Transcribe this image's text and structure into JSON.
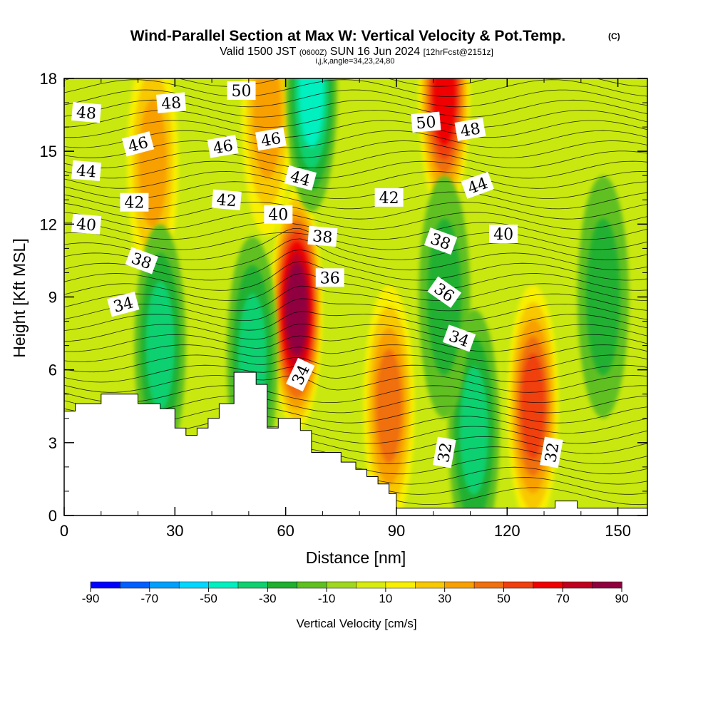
{
  "title": {
    "main": "Wind-Parallel Section at Max W: Vertical Velocity & Pot.Temp.",
    "copyright": "(C)",
    "valid_prefix": "Valid 1500 JST",
    "valid_utc": "(0600Z)",
    "valid_date": "SUN 16 Jun 2024",
    "forecast": "[12hrFcst@2151z]",
    "indices": "i,j,k,angle=34,23,24,80"
  },
  "chart_data": {
    "type": "heatmap",
    "xlabel": "Distance [nm]",
    "ylabel": "Height [Kft MSL]",
    "xlim": [
      0,
      158
    ],
    "ylim": [
      0,
      18
    ],
    "x_ticks": [
      0,
      30,
      60,
      90,
      120,
      150
    ],
    "y_ticks": [
      0,
      3,
      6,
      9,
      12,
      15,
      18
    ],
    "fill_variable": "Vertical Velocity [cm/s]",
    "colorbar": {
      "label": "Vertical Velocity [cm/s]",
      "tick_labels": [
        -90,
        -70,
        -50,
        -30,
        -10,
        10,
        30,
        50,
        70,
        90
      ],
      "levels": [
        -90,
        -80,
        -70,
        -60,
        -50,
        -40,
        -30,
        -20,
        -10,
        0,
        10,
        20,
        30,
        40,
        50,
        60,
        70,
        80,
        90
      ],
      "colors": [
        "#0000ff",
        "#0060ff",
        "#00a0ff",
        "#00d8ff",
        "#00f0c0",
        "#10d070",
        "#20b030",
        "#60c020",
        "#a0d820",
        "#d8ec10",
        "#f8f000",
        "#f8c800",
        "#f8a000",
        "#f07010",
        "#f04010",
        "#f00000",
        "#c00020",
        "#900040",
        "#600060"
      ]
    },
    "terrain": [
      [
        0,
        4.3
      ],
      [
        3,
        4.3
      ],
      [
        3,
        4.6
      ],
      [
        10,
        4.6
      ],
      [
        10,
        5.0
      ],
      [
        20,
        5.0
      ],
      [
        20,
        4.6
      ],
      [
        26,
        4.6
      ],
      [
        26,
        4.4
      ],
      [
        30,
        4.4
      ],
      [
        30,
        3.6
      ],
      [
        33,
        3.6
      ],
      [
        33,
        3.3
      ],
      [
        36,
        3.3
      ],
      [
        36,
        3.6
      ],
      [
        39,
        3.6
      ],
      [
        39,
        4.0
      ],
      [
        42,
        4.0
      ],
      [
        42,
        4.6
      ],
      [
        46,
        4.6
      ],
      [
        46,
        5.9
      ],
      [
        52,
        5.9
      ],
      [
        52,
        5.4
      ],
      [
        55,
        5.4
      ],
      [
        55,
        3.6
      ],
      [
        58,
        3.6
      ],
      [
        58,
        4.0
      ],
      [
        64,
        4.0
      ],
      [
        64,
        3.5
      ],
      [
        67,
        3.5
      ],
      [
        67,
        2.6
      ],
      [
        75,
        2.6
      ],
      [
        75,
        2.2
      ],
      [
        79,
        2.2
      ],
      [
        79,
        1.9
      ],
      [
        82,
        1.9
      ],
      [
        82,
        1.6
      ],
      [
        85,
        1.6
      ],
      [
        85,
        1.3
      ],
      [
        88,
        1.3
      ],
      [
        88,
        0.9
      ],
      [
        90,
        0.9
      ],
      [
        90,
        0.3
      ],
      [
        133,
        0.3
      ],
      [
        133,
        0.6
      ],
      [
        139,
        0.6
      ],
      [
        139,
        0.3
      ],
      [
        158,
        0.3
      ]
    ],
    "updrafts": [
      {
        "x": 63,
        "y": 8.5,
        "peak_cms": 80
      },
      {
        "x": 103,
        "y": 17.3,
        "peak_cms": 60
      },
      {
        "x": 127,
        "y": 4.5,
        "peak_cms": 50
      },
      {
        "x": 88,
        "y": 4.5,
        "peak_cms": 40
      },
      {
        "x": 24,
        "y": 14.5,
        "peak_cms": 35
      },
      {
        "x": 55,
        "y": 16.5,
        "peak_cms": 35
      }
    ],
    "downdrafts": [
      {
        "x": 67,
        "y": 17.5,
        "peak_cms": -45
      },
      {
        "x": 26,
        "y": 7.0,
        "peak_cms": -30
      },
      {
        "x": 51,
        "y": 6.5,
        "peak_cms": -30
      },
      {
        "x": 111,
        "y": 3.5,
        "peak_cms": -30
      },
      {
        "x": 103,
        "y": 9.0,
        "peak_cms": -25
      },
      {
        "x": 146,
        "y": 9.0,
        "peak_cms": -25
      }
    ],
    "isentrope_labels": [
      {
        "text": "48",
        "x": 6,
        "y": 16.6,
        "angle": 5
      },
      {
        "text": "48",
        "x": 29,
        "y": 17.0,
        "angle": -5
      },
      {
        "text": "50",
        "x": 48,
        "y": 17.5,
        "angle": 0
      },
      {
        "text": "50",
        "x": 98,
        "y": 16.2,
        "angle": -5
      },
      {
        "text": "48",
        "x": 110,
        "y": 15.9,
        "angle": -10
      },
      {
        "text": "46",
        "x": 20,
        "y": 15.3,
        "angle": -15
      },
      {
        "text": "46",
        "x": 43,
        "y": 15.2,
        "angle": -10
      },
      {
        "text": "46",
        "x": 56,
        "y": 15.5,
        "angle": -10
      },
      {
        "text": "44",
        "x": 6,
        "y": 14.2,
        "angle": 5
      },
      {
        "text": "44",
        "x": 64,
        "y": 13.9,
        "angle": 15
      },
      {
        "text": "44",
        "x": 112,
        "y": 13.6,
        "angle": -20
      },
      {
        "text": "42",
        "x": 19,
        "y": 12.9,
        "angle": 0
      },
      {
        "text": "42",
        "x": 44,
        "y": 13.0,
        "angle": 5
      },
      {
        "text": "42",
        "x": 88,
        "y": 13.1,
        "angle": 0
      },
      {
        "text": "40",
        "x": 6,
        "y": 12.0,
        "angle": 5
      },
      {
        "text": "40",
        "x": 58,
        "y": 12.4,
        "angle": 0
      },
      {
        "text": "40",
        "x": 119,
        "y": 11.6,
        "angle": 0
      },
      {
        "text": "38",
        "x": 70,
        "y": 11.5,
        "angle": 5
      },
      {
        "text": "38",
        "x": 102,
        "y": 11.3,
        "angle": 20
      },
      {
        "text": "38",
        "x": 21,
        "y": 10.5,
        "angle": 20
      },
      {
        "text": "36",
        "x": 72,
        "y": 9.8,
        "angle": 0
      },
      {
        "text": "36",
        "x": 103,
        "y": 9.2,
        "angle": 35
      },
      {
        "text": "34",
        "x": 16,
        "y": 8.7,
        "angle": -15
      },
      {
        "text": "34",
        "x": 64,
        "y": 5.8,
        "angle": -65
      },
      {
        "text": "34",
        "x": 107,
        "y": 7.3,
        "angle": 20
      },
      {
        "text": "32",
        "x": 103,
        "y": 2.6,
        "angle": -80
      },
      {
        "text": "32",
        "x": 132,
        "y": 2.6,
        "angle": -80
      }
    ]
  }
}
